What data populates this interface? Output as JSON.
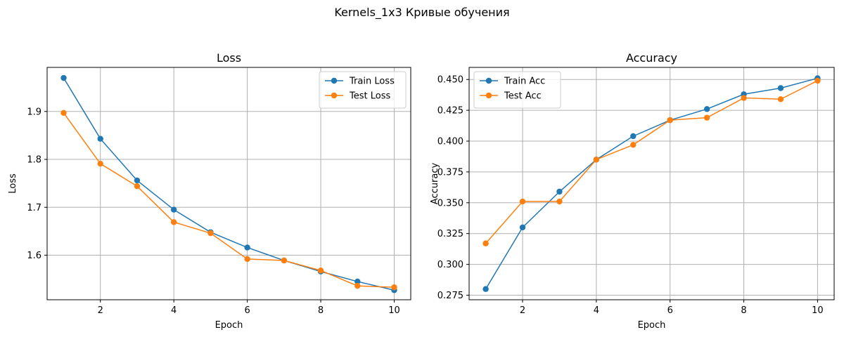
{
  "figure": {
    "suptitle": "Kernels_1x3 Кривые обучения"
  },
  "chart_data": [
    {
      "type": "line",
      "title": "Loss",
      "xlabel": "Epoch",
      "ylabel": "Loss",
      "x": [
        1,
        2,
        3,
        4,
        5,
        6,
        7,
        8,
        9,
        10
      ],
      "xlim": [
        0.55,
        10.45
      ],
      "ylim": [
        1.507,
        1.992
      ],
      "xticks": [
        2,
        4,
        6,
        8,
        10
      ],
      "yticks": [
        1.6,
        1.7,
        1.8,
        1.9
      ],
      "ytick_labels": [
        "1.6",
        "1.7",
        "1.8",
        "1.9"
      ],
      "grid": true,
      "legend": "upper right",
      "series": [
        {
          "name": "Train Loss",
          "color": "#1f77b4",
          "values": [
            1.97,
            1.843,
            1.756,
            1.695,
            1.648,
            1.616,
            1.589,
            1.566,
            1.545,
            1.527
          ]
        },
        {
          "name": "Test Loss",
          "color": "#ff7f0e",
          "values": [
            1.897,
            1.791,
            1.744,
            1.669,
            1.646,
            1.592,
            1.589,
            1.568,
            1.536,
            1.533
          ]
        }
      ]
    },
    {
      "type": "line",
      "title": "Accuracy",
      "xlabel": "Epoch",
      "ylabel": "Accuracy",
      "x": [
        1,
        2,
        3,
        4,
        5,
        6,
        7,
        8,
        9,
        10
      ],
      "xlim": [
        0.55,
        10.45
      ],
      "ylim": [
        0.2713,
        0.4598
      ],
      "xticks": [
        2,
        4,
        6,
        8,
        10
      ],
      "yticks": [
        0.275,
        0.3,
        0.325,
        0.35,
        0.375,
        0.4,
        0.425,
        0.45
      ],
      "ytick_labels": [
        "0.275",
        "0.300",
        "0.325",
        "0.350",
        "0.375",
        "0.400",
        "0.425",
        "0.450"
      ],
      "grid": true,
      "legend": "upper left",
      "series": [
        {
          "name": "Train Acc",
          "color": "#1f77b4",
          "values": [
            0.28,
            0.33,
            0.359,
            0.385,
            0.404,
            0.417,
            0.426,
            0.438,
            0.443,
            0.451
          ]
        },
        {
          "name": "Test Acc",
          "color": "#ff7f0e",
          "values": [
            0.317,
            0.351,
            0.351,
            0.385,
            0.397,
            0.417,
            0.419,
            0.435,
            0.434,
            0.449
          ]
        }
      ]
    }
  ]
}
